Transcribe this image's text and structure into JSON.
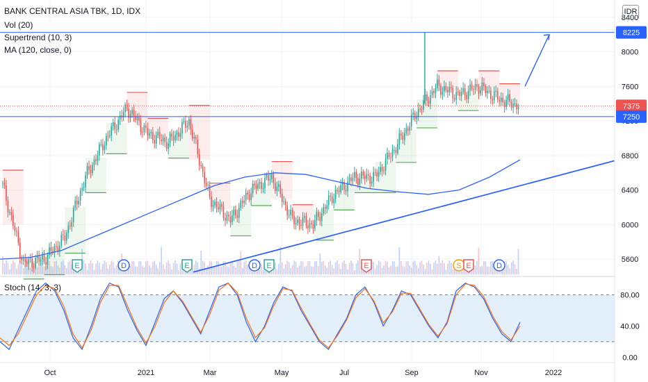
{
  "legend": {
    "symbol_line": "BANK CENTRAL ASIA TBK, 1D, IDX",
    "vol": "Vol (20)",
    "supertrend": "Supertrend (10, 3)",
    "ma": "MA (120, close, 0)"
  },
  "stoch_label": "Stoch (14, 3, 3)",
  "currency_button": "IDR",
  "colors": {
    "up": "#26a69a",
    "down": "#ef5350",
    "ma": "#2962ff",
    "stoch_k": "#2962ff",
    "stoch_d": "#ff6d00",
    "stoch_band": "#e3f0fb",
    "supertrend_up": "#4caf50",
    "supertrend_down": "#ef5350"
  },
  "chart_data": [
    {
      "type": "candlestick",
      "name": "BANK CENTRAL ASIA TBK",
      "x_axis_labels": [
        "Oct",
        "2021",
        "Mar",
        "May",
        "Jul",
        "Sep",
        "Nov",
        "2022"
      ],
      "y_axis_labels": [
        5600,
        6000,
        6400,
        6800,
        7200,
        7600,
        8000,
        8400
      ],
      "ylim": [
        5400,
        8600
      ],
      "price_tags": [
        {
          "value": 8225,
          "label": "8225",
          "kind": "horizontal_line"
        },
        {
          "value": 7375,
          "label": "7375",
          "kind": "last_price"
        },
        {
          "value": 7250,
          "label": "7250",
          "kind": "horizontal_line"
        }
      ],
      "key_points": [
        {
          "x": "Sep 2020",
          "close": 6450
        },
        {
          "x": "late Sep 2020",
          "close": 5550
        },
        {
          "x": "Oct 2020",
          "close": 5600
        },
        {
          "x": "Nov 2020",
          "close": 5850
        },
        {
          "x": "Dec 2020",
          "close": 6550
        },
        {
          "x": "mid Dec 2020",
          "close": 7000
        },
        {
          "x": "Jan 2021",
          "close": 7350
        },
        {
          "x": "Feb 2021",
          "close": 7050
        },
        {
          "x": "Mar 2021",
          "close": 6950
        },
        {
          "x": "mid Mar 2021",
          "close": 7200
        },
        {
          "x": "Apr 2021",
          "close": 6300
        },
        {
          "x": "mid Apr 2021",
          "close": 6050
        },
        {
          "x": "May 2021",
          "close": 6400
        },
        {
          "x": "Jun 2021",
          "close": 6550
        },
        {
          "x": "Jul 2021",
          "close": 6050
        },
        {
          "x": "Aug 2021",
          "close": 6000
        },
        {
          "x": "mid Aug 2021",
          "close": 6350
        },
        {
          "x": "late Aug 2021",
          "close": 6550
        },
        {
          "x": "Sep 2021",
          "close": 6550
        },
        {
          "x": "late Sep 2021",
          "close": 6900
        },
        {
          "x": "Oct 2021",
          "close": 7300
        },
        {
          "x": "mid Oct 2021",
          "close": 7600
        },
        {
          "x": "late Oct 2021",
          "close": 7500
        },
        {
          "x": "Nov 2021",
          "close": 7600
        },
        {
          "x": "mid Nov 2021",
          "close": 7450
        },
        {
          "x": "late Nov 2021",
          "close": 7375
        }
      ],
      "ma_120": [
        5600,
        5620,
        5700,
        5850,
        6000,
        6150,
        6300,
        6450,
        6550,
        6600,
        6580,
        6500,
        6420,
        6380,
        6350,
        6400,
        6550,
        6750
      ],
      "supertrend_note": "support (green) and resistance (red) step bands",
      "trendline": {
        "from": {
          "x": "Mar 2021",
          "price": 5450
        },
        "to": {
          "x": "Jan 2022",
          "price": 6740
        }
      },
      "projection_arrow": {
        "from_price": 7600,
        "to_price": 8200
      },
      "event_markers": [
        {
          "label": "E",
          "x": "Oct 2020",
          "color": "#26a69a"
        },
        {
          "label": "D",
          "x": "Dec 2020",
          "color": "#2962ff"
        },
        {
          "label": "E",
          "x": "Feb 2021",
          "color": "#26a69a"
        },
        {
          "label": "D",
          "x": "Apr 2021",
          "color": "#2962ff"
        },
        {
          "label": "E",
          "x": "Apr 2021",
          "color": "#26a69a"
        },
        {
          "label": "E",
          "x": "Aug 2021",
          "color": "#ef5350"
        },
        {
          "label": "S",
          "x": "Oct 2021",
          "color": "#ff9800"
        },
        {
          "label": "E",
          "x": "Oct 2021",
          "color": "#ef5350"
        },
        {
          "label": "D",
          "x": "Nov 2021",
          "color": "#2962ff"
        }
      ]
    },
    {
      "type": "line",
      "name": "Stoch (14, 3, 3)",
      "y_axis_labels": [
        "80.00",
        "40.00",
        "0.00"
      ],
      "ylim": [
        -5,
        100
      ],
      "bands": [
        20,
        80
      ],
      "series": [
        {
          "name": "%K",
          "values": [
            20,
            10,
            35,
            60,
            85,
            95,
            85,
            60,
            25,
            10,
            40,
            75,
            95,
            90,
            60,
            35,
            15,
            45,
            75,
            85,
            70,
            50,
            30,
            60,
            90,
            95,
            80,
            45,
            20,
            40,
            70,
            90,
            85,
            60,
            40,
            20,
            10,
            30,
            50,
            80,
            90,
            70,
            40,
            60,
            85,
            80,
            60,
            40,
            25,
            45,
            85,
            95,
            90,
            75,
            50,
            30,
            20,
            45
          ]
        },
        {
          "name": "%D",
          "values": [
            25,
            15,
            30,
            55,
            80,
            92,
            88,
            65,
            30,
            12,
            35,
            70,
            92,
            92,
            65,
            38,
            18,
            40,
            70,
            85,
            72,
            52,
            32,
            55,
            86,
            95,
            83,
            50,
            25,
            38,
            66,
            88,
            86,
            63,
            42,
            22,
            12,
            28,
            48,
            76,
            88,
            72,
            44,
            58,
            82,
            82,
            62,
            42,
            27,
            43,
            80,
            94,
            92,
            78,
            53,
            33,
            22,
            40
          ]
        }
      ]
    }
  ]
}
